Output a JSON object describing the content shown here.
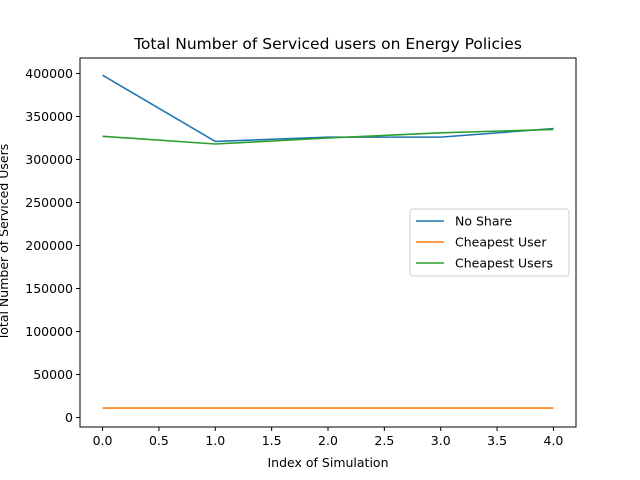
{
  "chart_data": {
    "type": "line",
    "title": "Total Number of Serviced users on Energy Policies",
    "xlabel": "Index of Simulation",
    "ylabel": "Total Number of Serviced Users",
    "x": [
      0,
      1,
      2,
      3,
      4
    ],
    "xlim": [
      -0.2,
      4.2
    ],
    "ylim": [
      -11000,
      418000
    ],
    "xticks": [
      0.0,
      0.5,
      1.0,
      1.5,
      2.0,
      2.5,
      3.0,
      3.5,
      4.0
    ],
    "xtick_labels": [
      "0.0",
      "0.5",
      "1.0",
      "1.5",
      "2.0",
      "2.5",
      "3.0",
      "3.5",
      "4.0"
    ],
    "yticks": [
      0,
      50000,
      100000,
      150000,
      200000,
      250000,
      300000,
      350000,
      400000
    ],
    "ytick_labels": [
      "0",
      "50000",
      "100000",
      "150000",
      "200000",
      "250000",
      "300000",
      "350000",
      "400000"
    ],
    "grid": false,
    "legend_position": "center-right",
    "series": [
      {
        "name": "No Share",
        "color": "#1f77b4",
        "values": [
          398000,
          321000,
          326000,
          326000,
          336000
        ]
      },
      {
        "name": "Cheapest User",
        "color": "#ff7f0e",
        "values": [
          11000,
          11000,
          11000,
          11000,
          11000
        ]
      },
      {
        "name": "Cheapest Users",
        "color": "#2ca02c",
        "values": [
          327000,
          318000,
          325000,
          331000,
          335000
        ]
      }
    ]
  }
}
